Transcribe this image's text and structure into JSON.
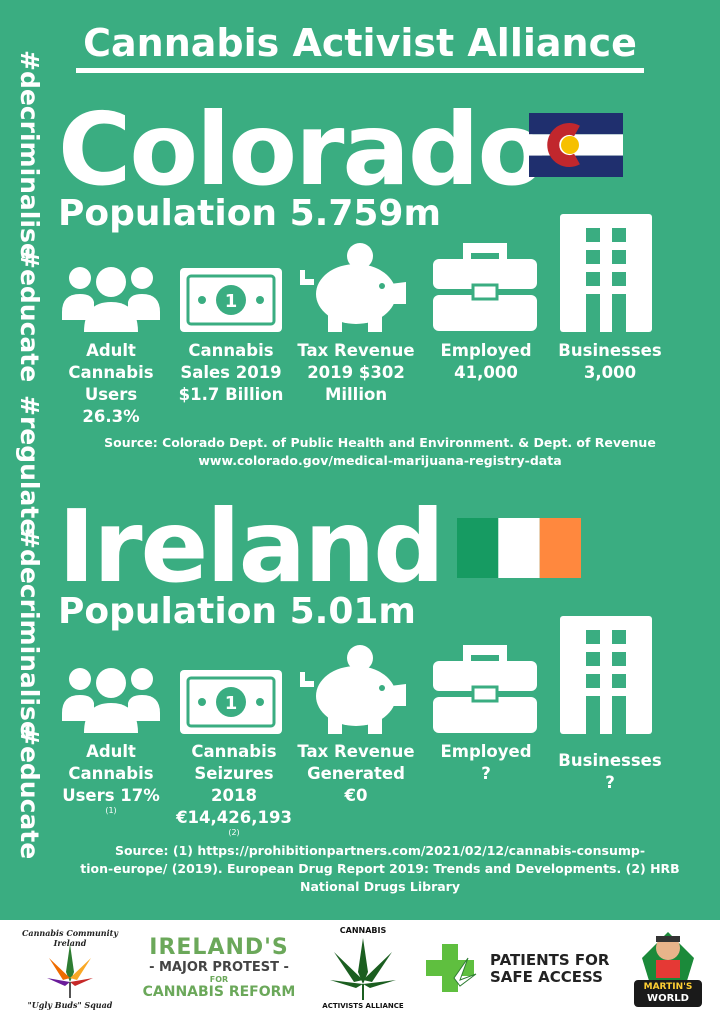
{
  "header": {
    "title": "Cannabis Activist Alliance"
  },
  "side_tags": [
    "#decriminalise",
    "#educate",
    "#regulate",
    "#decriminalise",
    "#educate"
  ],
  "colorado": {
    "name": "Colorado",
    "population": "Population 5.759m",
    "stats": {
      "users": [
        "Adult",
        "Cannabis",
        "Users",
        "26.3%"
      ],
      "sales": [
        "Cannabis",
        "Sales 2019",
        "$1.7 Billion"
      ],
      "tax": [
        "Tax Revenue",
        "2019 $302",
        "Million"
      ],
      "employed": [
        "Employed",
        "41,000"
      ],
      "businesses": [
        "Businesses",
        "3,000"
      ]
    },
    "source": [
      "Source: Colorado Dept. of Public Health and Environment. & Dept. of Revenue",
      "www.colorado.gov/medical-marijuana-registry-data"
    ],
    "flag_colors": {
      "blue": "#1f2f6e",
      "white": "#ffffff",
      "red": "#c1272d",
      "gold": "#f6c000"
    }
  },
  "ireland": {
    "name": "Ireland",
    "population": "Population 5.01m",
    "stats": {
      "users": [
        "Adult",
        "Cannabis",
        "Users 17%",
        "(1)"
      ],
      "seizures": [
        "Cannabis",
        "Seizures 2018",
        "€14,426,193",
        "(2)"
      ],
      "tax": [
        "Tax Revenue",
        "Generated",
        "€0"
      ],
      "employed": [
        "Employed",
        "?"
      ],
      "businesses": [
        "Businesses",
        "?"
      ]
    },
    "source": [
      "Source:  (1) https://prohibitionpartners.com/2021/02/12/cannabis-consump-",
      "tion-europe/ (2019). European Drug Report 2019: Trends and Developments. (2) HRB",
      "National Drugs Library"
    ],
    "flag_colors": {
      "green": "#169b62",
      "white": "#ffffff",
      "orange": "#ff883e"
    }
  },
  "footer": {
    "logo1": {
      "top": "Cannabis Community Ireland",
      "bottom": "\"Ugly Buds\" Squad"
    },
    "logo2": {
      "line1": "IRELAND'S",
      "line2": "- MAJOR PROTEST -",
      "line3": "FOR",
      "line4": "CANNABIS REFORM"
    },
    "logo3": {
      "top": "CANNABIS",
      "bottom": "ACTIVISTS ALLIANCE"
    },
    "logo4": {
      "line1": "PATIENTS FOR",
      "line2": "SAFE ACCESS"
    },
    "logo5": {
      "line1": "MARTIN'S",
      "line2": "WORLD"
    }
  }
}
